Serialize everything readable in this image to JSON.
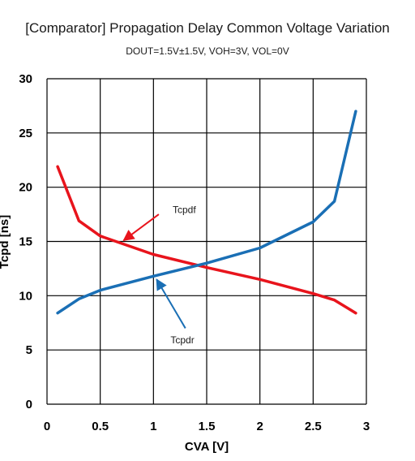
{
  "chart_data": {
    "type": "line",
    "title": "[Comparator] Propagation Delay Common Voltage Variation",
    "subtitle": "DOUT=1.5V±1.5V, VOH=3V, VOL=0V",
    "xlabel": "CVA [V]",
    "ylabel": "Tcpd [ns]",
    "xlim": [
      0,
      3
    ],
    "ylim": [
      0,
      30
    ],
    "x_ticks": [
      "0",
      "0.5",
      "1",
      "1.5",
      "2",
      "2.5",
      "3"
    ],
    "y_ticks": [
      "0",
      "5",
      "10",
      "15",
      "20",
      "25",
      "30"
    ],
    "grid": true,
    "legend": "none",
    "series": [
      {
        "name": "Tcpdf",
        "color": "#e8141c",
        "x": [
          0.1,
          0.3,
          0.5,
          1.0,
          1.5,
          2.0,
          2.5,
          2.7,
          2.9
        ],
        "y": [
          21.9,
          16.9,
          15.5,
          13.8,
          12.6,
          11.5,
          10.2,
          9.6,
          8.4
        ]
      },
      {
        "name": "Tcpdr",
        "color": "#1a6fb5",
        "x": [
          0.1,
          0.3,
          0.5,
          1.0,
          1.5,
          2.0,
          2.5,
          2.7,
          2.9
        ],
        "y": [
          8.4,
          9.7,
          10.5,
          11.8,
          13.0,
          14.4,
          16.8,
          18.7,
          27.0
        ]
      }
    ],
    "annotations": [
      {
        "text": "Tcpdf",
        "series": "Tcpdf"
      },
      {
        "text": "Tcpdr",
        "series": "Tcpdr"
      }
    ]
  }
}
